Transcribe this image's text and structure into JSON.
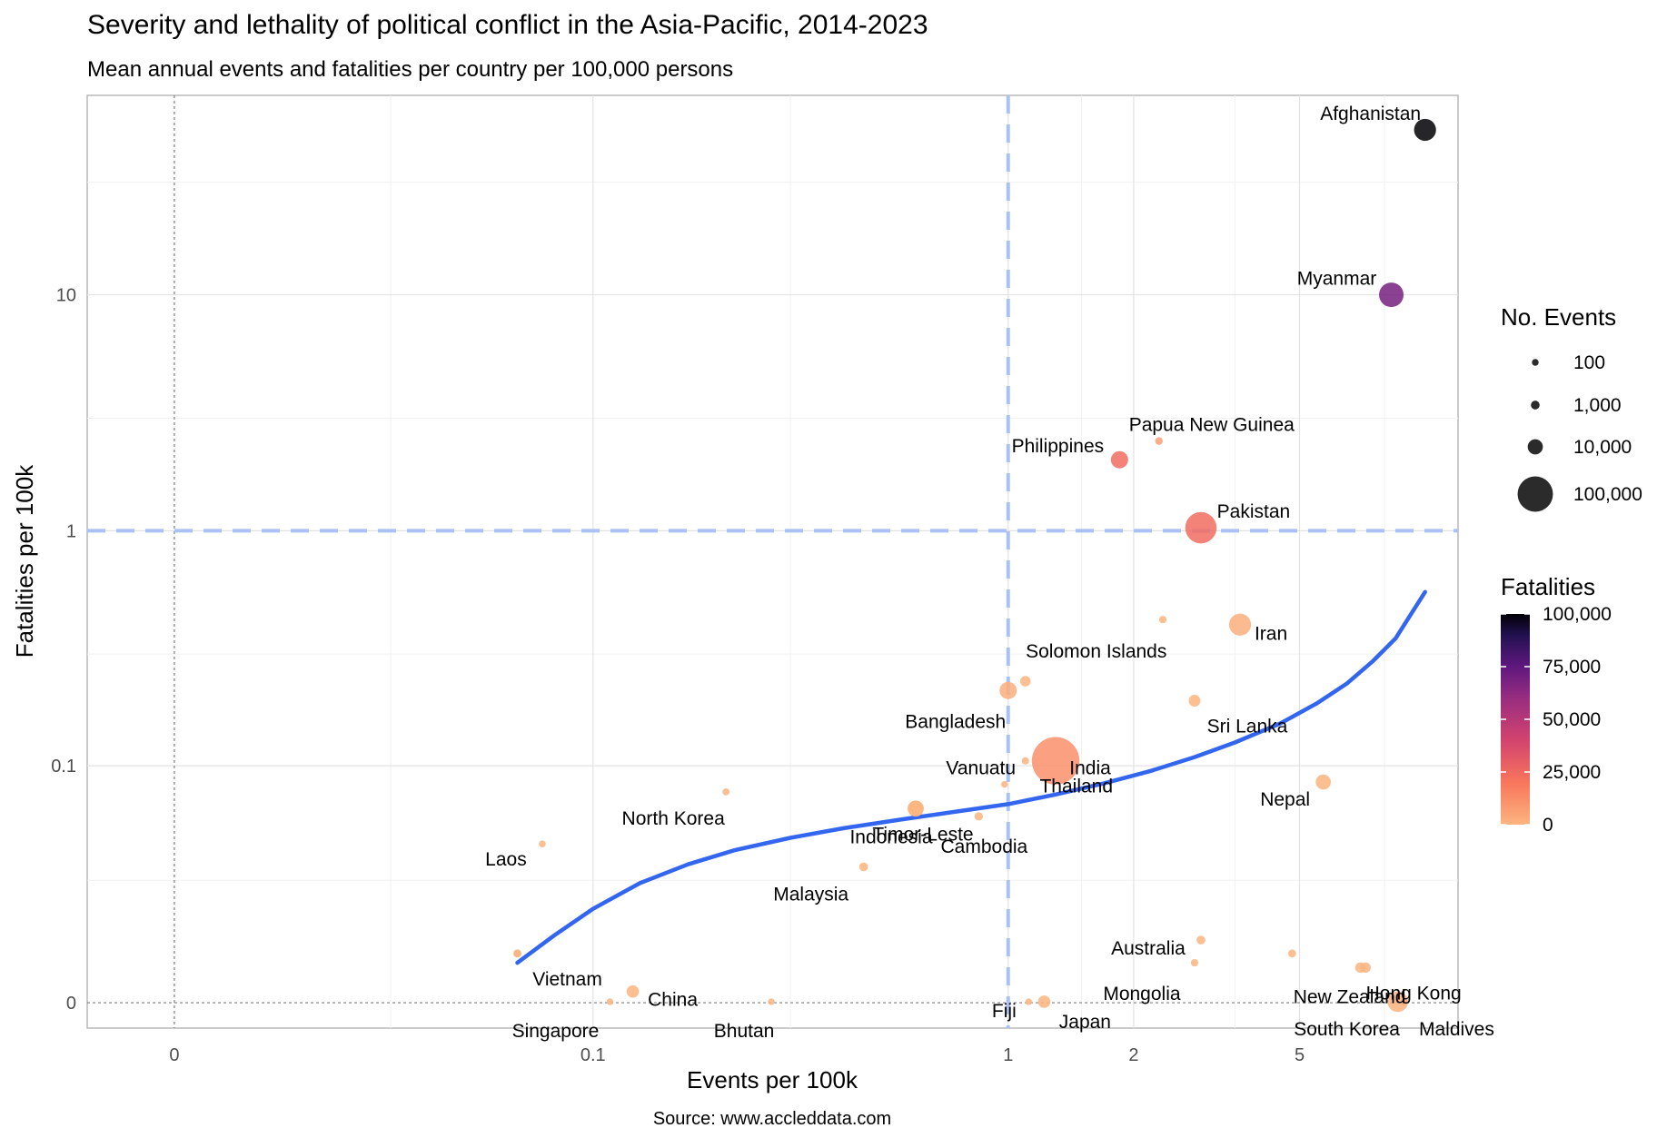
{
  "title": "Severity and lethality of political conflict in the Asia-Pacific, 2014-2023",
  "subtitle": "Mean annual events and fatalities per country per 100,000 persons",
  "caption": "Source: www.accleddata.com",
  "chart_data": {
    "type": "scatter",
    "xlabel": "Events per 100k",
    "ylabel": "Fatalities per 100k",
    "x_scale": "pseudo-log",
    "y_scale": "pseudo-log",
    "xlim": [
      -0.01,
      12
    ],
    "ylim": [
      -0.005,
      70
    ],
    "x_ticks": [
      {
        "value": 0,
        "label": "0"
      },
      {
        "value": 0.1,
        "label": "0.1"
      },
      {
        "value": 1,
        "label": "1"
      },
      {
        "value": 2,
        "label": "2"
      },
      {
        "value": 5,
        "label": "5"
      }
    ],
    "y_ticks": [
      {
        "value": 0,
        "label": "0"
      },
      {
        "value": 0.1,
        "label": "0.1"
      },
      {
        "value": 1,
        "label": "1"
      },
      {
        "value": 10,
        "label": "10"
      }
    ],
    "reference_lines": {
      "x": 1,
      "y": 1
    },
    "grid": true,
    "points": [
      {
        "label": "Afghanistan",
        "x": 10.0,
        "y": 50.0,
        "events": 30000,
        "fatalities": 100000
      },
      {
        "label": "Myanmar",
        "x": 8.3,
        "y": 10.0,
        "events": 40000,
        "fatalities": 60000
      },
      {
        "label": "Papua New Guinea",
        "x": 2.3,
        "y": 2.4,
        "events": 400,
        "fatalities": 5000
      },
      {
        "label": "Philippines",
        "x": 1.85,
        "y": 2.0,
        "events": 15000,
        "fatalities": 20000
      },
      {
        "label": "Pakistan",
        "x": 2.9,
        "y": 1.03,
        "events": 75000,
        "fatalities": 20000
      },
      {
        "label": "",
        "x": 2.35,
        "y": 0.42,
        "events": 300,
        "fatalities": 0
      },
      {
        "label": "Iran",
        "x": 3.6,
        "y": 0.4,
        "events": 30000,
        "fatalities": 1500
      },
      {
        "label": "Solomon Islands",
        "x": 1.1,
        "y": 0.23,
        "events": 2500,
        "fatalities": 0
      },
      {
        "label": "Bangladesh",
        "x": 1.0,
        "y": 0.21,
        "events": 15000,
        "fatalities": 1500
      },
      {
        "label": "Sri Lanka",
        "x": 2.8,
        "y": 0.19,
        "events": 4000,
        "fatalities": 0
      },
      {
        "label": "Thailand",
        "x": 1.1,
        "y": 0.105,
        "events": 300,
        "fatalities": 0
      },
      {
        "label": "India",
        "x": 1.3,
        "y": 0.105,
        "events": 200000,
        "fatalities": 10000
      },
      {
        "label": "Nepal",
        "x": 5.7,
        "y": 0.085,
        "events": 10000,
        "fatalities": 0
      },
      {
        "label": "Vanuatu",
        "x": 0.98,
        "y": 0.083,
        "events": 100,
        "fatalities": 0
      },
      {
        "label": "North Korea",
        "x": 0.21,
        "y": 0.077,
        "events": 200,
        "fatalities": 0
      },
      {
        "label": "Timor-Leste",
        "x": 0.6,
        "y": 0.065,
        "events": 12000,
        "fatalities": 0
      },
      {
        "label": "Indonesia",
        "x": 0.6,
        "y": 0.065,
        "events": 12000,
        "fatalities": 0
      },
      {
        "label": "Cambodia",
        "x": 0.85,
        "y": 0.06,
        "events": 800,
        "fatalities": 0
      },
      {
        "label": "Laos",
        "x": 0.075,
        "y": 0.045,
        "events": 150,
        "fatalities": 0
      },
      {
        "label": "Malaysia",
        "x": 0.45,
        "y": 0.035,
        "events": 1000,
        "fatalities": 0
      },
      {
        "label": "Australia",
        "x": 2.9,
        "y": 0.013,
        "events": 1000,
        "fatalities": 0
      },
      {
        "label": "",
        "x": 4.8,
        "y": 0.01,
        "events": 500,
        "fatalities": 0
      },
      {
        "label": "",
        "x": 0.065,
        "y": 0.01,
        "events": 500,
        "fatalities": 0
      },
      {
        "label": "Mongolia",
        "x": 2.8,
        "y": 0.008,
        "events": 300,
        "fatalities": 0
      },
      {
        "label": "New Zealand",
        "x": 7.0,
        "y": 0.007,
        "events": 2500,
        "fatalities": 0
      },
      {
        "label": "Vietnam",
        "x": 0.065,
        "y": 0.01,
        "events": 500,
        "fatalities": 0
      },
      {
        "label": "Hong Kong",
        "x": 7.2,
        "y": 0.007,
        "events": 2500,
        "fatalities": 0
      },
      {
        "label": "China",
        "x": 0.125,
        "y": 0.0022,
        "events": 5000,
        "fatalities": 0
      },
      {
        "label": "Singapore",
        "x": 0.11,
        "y": 0.0002,
        "events": 100,
        "fatalities": 0
      },
      {
        "label": "Bhutan",
        "x": 0.27,
        "y": 0.0002,
        "events": 100,
        "fatalities": 0
      },
      {
        "label": "Fiji",
        "x": 1.12,
        "y": 0.0002,
        "events": 100,
        "fatalities": 0
      },
      {
        "label": "Japan",
        "x": 1.22,
        "y": 0.0002,
        "events": 5000,
        "fatalities": 0
      },
      {
        "label": "South Korea",
        "x": 8.6,
        "y": 0.0002,
        "events": 25000,
        "fatalities": 0
      },
      {
        "label": "Maldives",
        "x": 8.9,
        "y": 0.0002,
        "events": 400,
        "fatalities": 0
      }
    ],
    "trend_line": {
      "x": [
        0.065,
        0.08,
        0.1,
        0.13,
        0.17,
        0.22,
        0.3,
        0.4,
        0.55,
        0.75,
        1.0,
        1.3,
        1.7,
        2.2,
        2.8,
        3.5,
        4.5,
        5.5,
        6.5,
        7.5,
        8.5,
        10.0
      ],
      "y": [
        0.008,
        0.014,
        0.021,
        0.029,
        0.036,
        0.042,
        0.048,
        0.053,
        0.058,
        0.063,
        0.068,
        0.075,
        0.084,
        0.095,
        0.109,
        0.126,
        0.152,
        0.185,
        0.225,
        0.28,
        0.35,
        0.55
      ]
    },
    "legend_size": {
      "title": "No. Events",
      "entries": [
        {
          "value": 100,
          "label": "100"
        },
        {
          "value": 1000,
          "label": "1,000"
        },
        {
          "value": 10000,
          "label": "10,000"
        },
        {
          "value": 100000,
          "label": "100,000"
        }
      ]
    },
    "legend_color": {
      "title": "Fatalities",
      "ticks": [
        {
          "value": 0,
          "label": "0"
        },
        {
          "value": 25000,
          "label": "25,000"
        },
        {
          "value": 50000,
          "label": "50,000"
        },
        {
          "value": 75000,
          "label": "75,000"
        },
        {
          "value": 100000,
          "label": "100,000"
        }
      ]
    },
    "colors": {
      "trend": "#3366ee",
      "reference": "#a9c1f5",
      "zero_line": "#7f7f7f",
      "palette": [
        "#fcb47f",
        "#f8765c",
        "#d3436e",
        "#982d80",
        "#5f187f",
        "#221150",
        "#000004"
      ]
    }
  }
}
